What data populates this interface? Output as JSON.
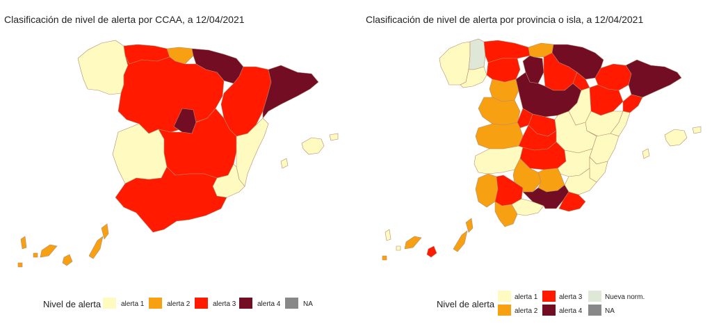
{
  "left_map": {
    "title": "Clasificación de nivel de alerta por CCAA, a 12/04/2021",
    "legend": {
      "title": "Nivel de alerta",
      "items": [
        {
          "label": "alerta 1",
          "color": "#fffbc0"
        },
        {
          "label": "alerta 2",
          "color": "#f7a011"
        },
        {
          "label": "alerta 3",
          "color": "#ff1a00"
        },
        {
          "label": "alerta 4",
          "color": "#720d23"
        },
        {
          "label": "NA",
          "color": "#888888"
        }
      ]
    },
    "regions": [
      {
        "name": "Galicia",
        "level": "alerta 1"
      },
      {
        "name": "Asturias",
        "level": "alerta 3"
      },
      {
        "name": "Cantabria",
        "level": "alerta 2"
      },
      {
        "name": "País Vasco",
        "level": "alerta 4"
      },
      {
        "name": "Navarra",
        "level": "alerta 4"
      },
      {
        "name": "La Rioja",
        "level": "alerta 3"
      },
      {
        "name": "Aragón",
        "level": "alerta 3"
      },
      {
        "name": "Cataluña",
        "level": "alerta 4"
      },
      {
        "name": "Castilla y León",
        "level": "alerta 3"
      },
      {
        "name": "Madrid",
        "level": "alerta 4"
      },
      {
        "name": "Castilla-La Mancha",
        "level": "alerta 3"
      },
      {
        "name": "Extremadura",
        "level": "alerta 1"
      },
      {
        "name": "Comunitat Valenciana",
        "level": "alerta 1"
      },
      {
        "name": "Murcia",
        "level": "alerta 1"
      },
      {
        "name": "Andalucía",
        "level": "alerta 3"
      },
      {
        "name": "Illes Balears",
        "level": "alerta 1"
      },
      {
        "name": "Canarias",
        "level": "alerta 2"
      }
    ]
  },
  "right_map": {
    "title": "Clasificación de nivel de alerta por provincia o isla, a 12/04/2021",
    "legend": {
      "title": "Nivel de alerta",
      "items": [
        {
          "label": "alerta 1",
          "color": "#fffbc0"
        },
        {
          "label": "alerta 3",
          "color": "#ff1a00"
        },
        {
          "label": "Nueva norm.",
          "color": "#dfe8d6"
        },
        {
          "label": "alerta 2",
          "color": "#f7a011"
        },
        {
          "label": "alerta 4",
          "color": "#720d23"
        },
        {
          "label": "NA",
          "color": "#888888"
        }
      ]
    }
  },
  "colors": {
    "alerta_1": "#fffbc0",
    "alerta_2": "#f7a011",
    "alerta_3": "#ff1a00",
    "alerta_4": "#720d23",
    "nueva_norm": "#dfe8d6",
    "na": "#888888",
    "border": "#ffffff"
  }
}
